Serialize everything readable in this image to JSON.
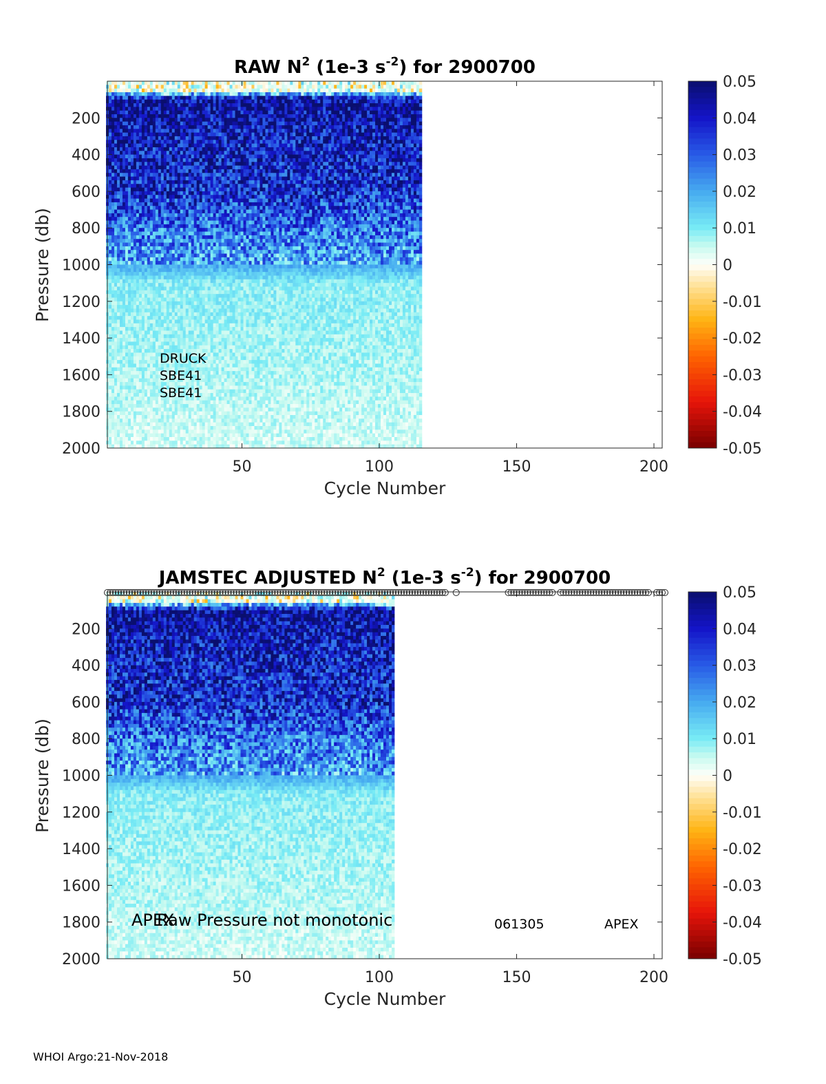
{
  "footer": "WHOI Argo:21-Nov-2018",
  "colorbar": {
    "ticks": [
      "0.05",
      "0.04",
      "0.03",
      "0.02",
      "0.01",
      "0",
      "-0.01",
      "-0.02",
      "-0.03",
      "-0.04",
      "-0.05"
    ],
    "range": [
      -0.05,
      0.05
    ]
  },
  "chart_data": [
    {
      "type": "heatmap",
      "title": "RAW N² (1e-3 s⁻²) for 2900700",
      "title_parts": {
        "pre": "RAW N",
        "sup1": "2",
        "mid": " (1e-3 s",
        "sup2": "-2",
        "post": ") for 2900700"
      },
      "xlabel": "Cycle Number",
      "ylabel": "Pressure (db)",
      "xlim": [
        1,
        203
      ],
      "ylim": [
        2000,
        0
      ],
      "x_ticks": [
        "50",
        "100",
        "150",
        "200"
      ],
      "y_ticks": [
        "200",
        "400",
        "600",
        "800",
        "1000",
        "1200",
        "1400",
        "1600",
        "1800",
        "2000"
      ],
      "data_extent_cycles": [
        1,
        115
      ],
      "colorbar_range": [
        -0.05,
        0.05
      ],
      "annotations": [
        "DRUCK",
        "SBE41",
        "SBE41"
      ],
      "value_profile_by_pressure": [
        {
          "pressure": 50,
          "value": 0.0
        },
        {
          "pressure": 100,
          "value": 0.045
        },
        {
          "pressure": 300,
          "value": 0.04
        },
        {
          "pressure": 600,
          "value": 0.037
        },
        {
          "pressure": 800,
          "value": 0.027
        },
        {
          "pressure": 1000,
          "value": 0.02
        },
        {
          "pressure": 1100,
          "value": 0.009
        },
        {
          "pressure": 1500,
          "value": 0.007
        },
        {
          "pressure": 2000,
          "value": 0.004
        }
      ]
    },
    {
      "type": "heatmap",
      "title": "JAMSTEC  ADJUSTED N² (1e-3 s⁻²) for 2900700",
      "title_parts": {
        "pre": "JAMSTEC  ADJUSTED N",
        "sup1": "2",
        "mid": " (1e-3 s",
        "sup2": "-2",
        "post": ") for 2900700"
      },
      "xlabel": "Cycle Number",
      "ylabel": "Pressure (db)",
      "xlim": [
        1,
        203
      ],
      "ylim": [
        2000,
        0
      ],
      "x_ticks": [
        "50",
        "100",
        "150",
        "200"
      ],
      "y_ticks": [
        "200",
        "400",
        "600",
        "800",
        "1000",
        "1200",
        "1400",
        "1600",
        "1800",
        "2000"
      ],
      "data_extent_cycles": [
        1,
        105
      ],
      "colorbar_range": [
        -0.05,
        0.05
      ],
      "annotations": [
        "APEX",
        "Raw Pressure not monotonic",
        "061305",
        "APEX"
      ],
      "marker_cycles": [
        [
          1,
          124
        ],
        [
          128,
          128
        ],
        [
          147,
          163
        ],
        [
          166,
          198
        ],
        [
          201,
          204
        ]
      ],
      "value_profile_by_pressure": [
        {
          "pressure": 50,
          "value": 0.0
        },
        {
          "pressure": 100,
          "value": 0.045
        },
        {
          "pressure": 300,
          "value": 0.04
        },
        {
          "pressure": 600,
          "value": 0.037
        },
        {
          "pressure": 800,
          "value": 0.027
        },
        {
          "pressure": 1000,
          "value": 0.02
        },
        {
          "pressure": 1100,
          "value": 0.009
        },
        {
          "pressure": 1500,
          "value": 0.007
        },
        {
          "pressure": 2000,
          "value": 0.004
        }
      ]
    }
  ]
}
